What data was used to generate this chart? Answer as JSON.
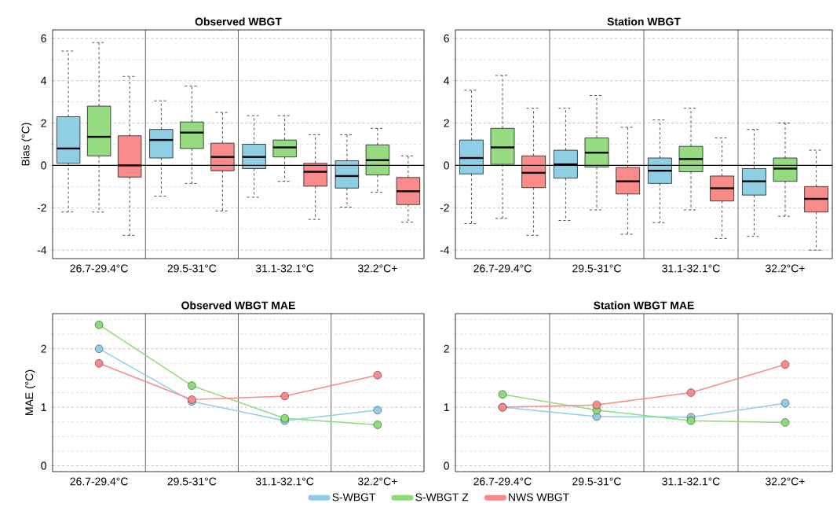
{
  "chart_data": [
    {
      "type": "box",
      "title": "Observed WBGT",
      "ylabel": "Bias (°C)",
      "categories": [
        "26.7-29.4°C",
        "29.5-31°C",
        "31.1-32.1°C",
        "32.2°C+"
      ],
      "ylim": [
        -4.4,
        6.4
      ],
      "yticks": [
        -4,
        {
          "value": -3,
          "label": null
        },
        -2,
        {
          "value": -1,
          "label": null
        },
        0,
        {
          "value": 1,
          "label": null
        },
        2,
        {
          "value": 3,
          "label": null
        },
        4,
        {
          "value": 5,
          "label": null
        },
        6
      ],
      "grid": "y",
      "ref_lines": [
        {
          "axis": "y",
          "value": 0,
          "color": "#000000"
        }
      ],
      "series": [
        {
          "color": "#8ecfe6",
          "boxes": [
            {
              "low": -2.2,
              "q1": 0.1,
              "median": 0.8,
              "q3": 2.3,
              "high": 5.4
            },
            {
              "low": -1.45,
              "q1": 0.35,
              "median": 1.2,
              "q3": 1.7,
              "high": 3.05
            },
            {
              "low": -1.5,
              "q1": -0.15,
              "median": 0.4,
              "q3": 1.0,
              "high": 2.35
            },
            {
              "low": -1.97,
              "q1": -1.07,
              "median": -0.5,
              "q3": 0.22,
              "high": 1.45
            }
          ]
        },
        {
          "color": "#95dc80",
          "boxes": [
            {
              "low": -2.2,
              "q1": 0.45,
              "median": 1.35,
              "q3": 2.8,
              "high": 5.8
            },
            {
              "low": -0.85,
              "q1": 0.8,
              "median": 1.55,
              "q3": 2.05,
              "high": 3.75
            },
            {
              "low": -0.75,
              "q1": 0.4,
              "median": 0.85,
              "q3": 1.2,
              "high": 2.35
            },
            {
              "low": -1.27,
              "q1": -0.45,
              "median": 0.25,
              "q3": 0.97,
              "high": 1.75
            }
          ]
        },
        {
          "color": "#fb8b8b",
          "boxes": [
            {
              "low": -3.3,
              "q1": -0.55,
              "median": 0.0,
              "q3": 1.4,
              "high": 4.2
            },
            {
              "low": -2.15,
              "q1": -0.25,
              "median": 0.4,
              "q3": 1.05,
              "high": 2.5
            },
            {
              "low": -2.55,
              "q1": -0.98,
              "median": -0.3,
              "q3": 0.1,
              "high": 1.45
            },
            {
              "low": -2.68,
              "q1": -1.85,
              "median": -1.22,
              "q3": -0.57,
              "high": 0.45
            }
          ]
        }
      ]
    },
    {
      "type": "box",
      "title": "Station WBGT",
      "categories": [
        "26.7-29.4°C",
        "29.5-31°C",
        "31.1-32.1°C",
        "32.2°C+"
      ],
      "ylim": [
        -4.4,
        6.4
      ],
      "yticks": [
        -4,
        {
          "value": -3,
          "label": null
        },
        -2,
        {
          "value": -1,
          "label": null
        },
        0,
        {
          "value": 1,
          "label": null
        },
        2,
        {
          "value": 3,
          "label": null
        },
        4,
        {
          "value": 5,
          "label": null
        },
        6
      ],
      "grid": "y",
      "ref_lines": [
        {
          "axis": "y",
          "value": 0,
          "color": "#000000"
        }
      ],
      "series": [
        {
          "color": "#8ecfe6",
          "boxes": [
            {
              "low": -2.75,
              "q1": -0.4,
              "median": 0.35,
              "q3": 1.2,
              "high": 3.55
            },
            {
              "low": -2.6,
              "q1": -0.6,
              "median": 0.05,
              "q3": 0.72,
              "high": 2.7
            },
            {
              "low": -2.7,
              "q1": -0.85,
              "median": -0.25,
              "q3": 0.35,
              "high": 2.15
            },
            {
              "low": -3.35,
              "q1": -1.4,
              "median": -0.75,
              "q3": -0.15,
              "high": 1.7
            }
          ]
        },
        {
          "color": "#95dc80",
          "boxes": [
            {
              "low": -2.5,
              "q1": 0.05,
              "median": 0.85,
              "q3": 1.75,
              "high": 4.25
            },
            {
              "low": -2.1,
              "q1": -0.08,
              "median": 0.6,
              "q3": 1.3,
              "high": 3.3
            },
            {
              "low": -2.1,
              "q1": -0.3,
              "median": 0.3,
              "q3": 0.9,
              "high": 2.7
            },
            {
              "low": -2.4,
              "q1": -0.75,
              "median": -0.15,
              "q3": 0.35,
              "high": 2.0
            }
          ]
        },
        {
          "color": "#fb8b8b",
          "boxes": [
            {
              "low": -3.3,
              "q1": -1.05,
              "median": -0.35,
              "q3": 0.45,
              "high": 2.7
            },
            {
              "low": -3.25,
              "q1": -1.35,
              "median": -0.75,
              "q3": -0.1,
              "high": 1.8
            },
            {
              "low": -3.45,
              "q1": -1.68,
              "median": -1.08,
              "q3": -0.5,
              "high": 1.3
            },
            {
              "low": -4.0,
              "q1": -2.2,
              "median": -1.58,
              "q3": -1.0,
              "high": 0.72
            }
          ]
        }
      ]
    },
    {
      "type": "line",
      "title": "Observed WBGT MAE",
      "ylabel": "MAE (°C)",
      "categories": [
        "26.7-29.4°C",
        "29.5-31°C",
        "31.1-32.1°C",
        "32.2°C+"
      ],
      "ylim": [
        -0.1,
        2.6
      ],
      "yticks": [
        0,
        {
          "value": 0.25,
          "label": null
        },
        {
          "value": 0.5,
          "label": null
        },
        {
          "value": 0.75,
          "label": null
        },
        1,
        {
          "value": 1.25,
          "label": null
        },
        {
          "value": 1.5,
          "label": null
        },
        {
          "value": 1.75,
          "label": null
        },
        2,
        {
          "value": 2.25,
          "label": null
        },
        {
          "value": 2.5,
          "label": null
        }
      ],
      "grid": "y",
      "marker": "circle",
      "series": [
        {
          "color": "#8ecfe6",
          "values": [
            2.0,
            1.1,
            0.77,
            0.95
          ]
        },
        {
          "color": "#8ddc78",
          "values": [
            2.41,
            1.37,
            0.81,
            0.7
          ]
        },
        {
          "color": "#fb8b8b",
          "values": [
            1.75,
            1.13,
            1.19,
            1.55
          ]
        }
      ]
    },
    {
      "type": "line",
      "title": "Station WBGT MAE",
      "categories": [
        "26.7-29.4°C",
        "29.5-31°C",
        "31.1-32.1°C",
        "32.2°C+"
      ],
      "ylim": [
        -0.1,
        2.6
      ],
      "yticks": [
        0,
        {
          "value": 0.25,
          "label": null
        },
        {
          "value": 0.5,
          "label": null
        },
        {
          "value": 0.75,
          "label": null
        },
        1,
        {
          "value": 1.25,
          "label": null
        },
        {
          "value": 1.5,
          "label": null
        },
        {
          "value": 1.75,
          "label": null
        },
        2,
        {
          "value": 2.25,
          "label": null
        },
        {
          "value": 2.5,
          "label": null
        }
      ],
      "grid": "y",
      "marker": "circle",
      "legend": "bottom",
      "series": [
        {
          "name": "S-WBGT",
          "color": "#8ecfe6",
          "values": [
            1.0,
            0.84,
            0.83,
            1.07
          ]
        },
        {
          "name": "S-WBGT Z",
          "color": "#8ddc78",
          "values": [
            1.22,
            0.95,
            0.77,
            0.74
          ]
        },
        {
          "name": "NWS WBGT",
          "color": "#fb8b8b",
          "values": [
            1.0,
            1.04,
            1.25,
            1.73
          ]
        }
      ]
    }
  ]
}
